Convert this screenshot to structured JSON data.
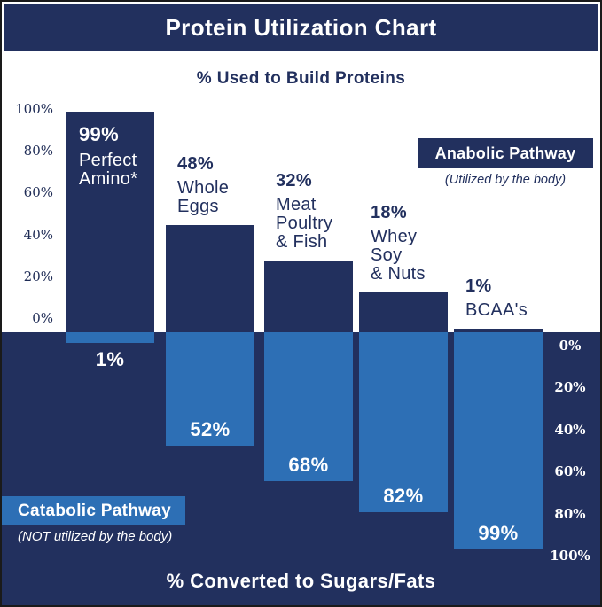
{
  "title": "Protein Utilization Chart",
  "top_section": {
    "heading": "% Used to Build Proteins",
    "axis_ticks": [
      "100%",
      "80%",
      "60%",
      "40%",
      "20%",
      "0%"
    ]
  },
  "bottom_section": {
    "heading": "% Converted to Sugars/Fats",
    "axis_ticks": [
      "0%",
      "20%",
      "40%",
      "60%",
      "80%",
      "100%"
    ]
  },
  "anabolic": {
    "label": "Anabolic Pathway",
    "caption": "(Utilized by the body)"
  },
  "catabolic": {
    "label": "Catabolic Pathway",
    "caption": "(NOT utilized by the body)"
  },
  "colors": {
    "navy": "#22305E",
    "medium_blue": "#2D6FB5",
    "white": "#FFFFFF"
  },
  "chart_data": {
    "type": "bar",
    "orientation": "diverging-vertical",
    "title": "Protein Utilization Chart",
    "categories": [
      "Perfect Amino*",
      "Whole Eggs",
      "Meat Poultry & Fish",
      "Whey Soy & Nuts",
      "BCAA's"
    ],
    "category_lines": [
      [
        "Perfect",
        "Amino*"
      ],
      [
        "Whole",
        "Eggs"
      ],
      [
        "Meat",
        "Poultry",
        "& Fish"
      ],
      [
        "Whey",
        "Soy",
        "& Nuts"
      ],
      [
        "BCAA's"
      ]
    ],
    "series": [
      {
        "name": "% Used to Build Proteins (Anabolic Pathway)",
        "direction": "up",
        "color": "#22305E",
        "values": [
          99,
          48,
          32,
          18,
          1
        ],
        "value_labels": [
          "99%",
          "48%",
          "32%",
          "18%",
          "1%"
        ]
      },
      {
        "name": "% Converted to Sugars/Fats (Catabolic Pathway)",
        "direction": "down",
        "color": "#2D6FB5",
        "values": [
          1,
          52,
          68,
          82,
          99
        ],
        "value_labels": [
          "1%",
          "52%",
          "68%",
          "82%",
          "99%"
        ]
      }
    ],
    "axis_up_range": [
      0,
      100
    ],
    "axis_down_range": [
      0,
      100
    ],
    "grid": false,
    "legend_position": "anabolic top-right, catabolic bottom-left"
  }
}
